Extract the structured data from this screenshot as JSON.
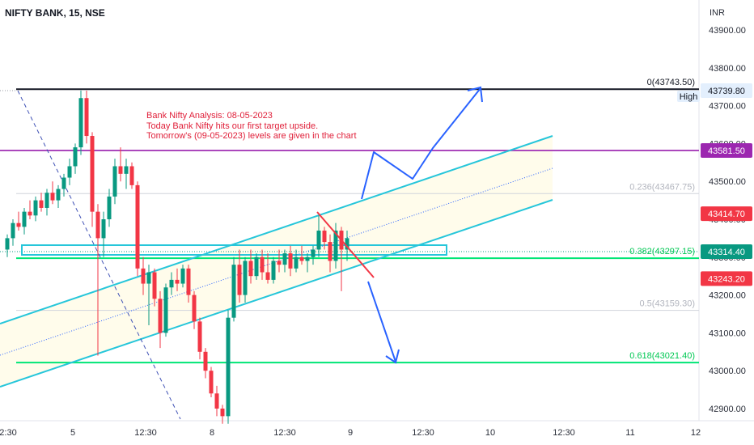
{
  "header": {
    "symbol": "NIFTY BANK, 15, NSE"
  },
  "price_axis": {
    "currency": "INR",
    "ticks": [
      "43900.00",
      "43800.00",
      "43700.00",
      "43600.00",
      "43500.00",
      "43400.00",
      "43300.00",
      "43200.00",
      "43100.00",
      "43000.00",
      "42900.00"
    ]
  },
  "time_axis": {
    "labels": [
      "2:30",
      "5",
      "12:30",
      "8",
      "12:30",
      "9",
      "12:30",
      "10",
      "12:30",
      "11",
      "12"
    ]
  },
  "annotation": {
    "lines": [
      "Bank Nifty Analysis: 08-05-2023",
      "Today Bank Nifty hits our first target upside.",
      "Tomorrow's (09-05-2023) levels are given in the chart"
    ]
  },
  "price_badges": [
    {
      "label": "43739.80",
      "value": 43739.8,
      "style": "light"
    },
    {
      "label": "43581.50",
      "value": 43581.5,
      "color": "#9c27b0"
    },
    {
      "label": "43414.70",
      "value": 43414.7,
      "color": "#f23645"
    },
    {
      "label": "43314.40",
      "value": 43314.4,
      "color": "#089981"
    },
    {
      "label": "43243.20",
      "value": 43243.2,
      "color": "#f23645"
    }
  ],
  "high_tag": "High",
  "colors": {
    "up": "#089981",
    "down": "#f23645",
    "channel": "#26c6da",
    "fib_green": "#00e676",
    "purple": "#ab47bc",
    "arrow": "#2962ff",
    "triangle": "#f23645",
    "annotation": "#e0203a"
  },
  "chart_data": {
    "type": "candlestick",
    "title": "NIFTY BANK, 15, NSE",
    "ylim": [
      42860,
      43960
    ],
    "ylabel": "INR",
    "candles": [
      {
        "o": 43320,
        "h": 43360,
        "l": 43300,
        "c": 43350
      },
      {
        "o": 43350,
        "h": 43400,
        "l": 43330,
        "c": 43390
      },
      {
        "o": 43390,
        "h": 43420,
        "l": 43370,
        "c": 43380
      },
      {
        "o": 43380,
        "h": 43430,
        "l": 43360,
        "c": 43420
      },
      {
        "o": 43420,
        "h": 43450,
        "l": 43400,
        "c": 43410
      },
      {
        "o": 43410,
        "h": 43460,
        "l": 43395,
        "c": 43450
      },
      {
        "o": 43450,
        "h": 43470,
        "l": 43420,
        "c": 43430
      },
      {
        "o": 43430,
        "h": 43480,
        "l": 43410,
        "c": 43470
      },
      {
        "o": 43470,
        "h": 43500,
        "l": 43440,
        "c": 43450
      },
      {
        "o": 43450,
        "h": 43490,
        "l": 43430,
        "c": 43480
      },
      {
        "o": 43480,
        "h": 43520,
        "l": 43460,
        "c": 43510
      },
      {
        "o": 43510,
        "h": 43560,
        "l": 43490,
        "c": 43540
      },
      {
        "o": 43540,
        "h": 43600,
        "l": 43520,
        "c": 43590
      },
      {
        "o": 43590,
        "h": 43740,
        "l": 43570,
        "c": 43720
      },
      {
        "o": 43720,
        "h": 43739.8,
        "l": 43600,
        "c": 43620
      },
      {
        "o": 43620,
        "h": 43630,
        "l": 43380,
        "c": 43420
      },
      {
        "o": 43420,
        "h": 43440,
        "l": 43040,
        "c": 43350
      },
      {
        "o": 43350,
        "h": 43420,
        "l": 43300,
        "c": 43400
      },
      {
        "o": 43400,
        "h": 43480,
        "l": 43380,
        "c": 43460
      },
      {
        "o": 43460,
        "h": 43560,
        "l": 43440,
        "c": 43540
      },
      {
        "o": 43540,
        "h": 43590,
        "l": 43500,
        "c": 43520
      },
      {
        "o": 43520,
        "h": 43560,
        "l": 43480,
        "c": 43540
      },
      {
        "o": 43540,
        "h": 43550,
        "l": 43480,
        "c": 43490
      },
      {
        "o": 43490,
        "h": 43500,
        "l": 43250,
        "c": 43270
      },
      {
        "o": 43270,
        "h": 43300,
        "l": 43200,
        "c": 43230
      },
      {
        "o": 43230,
        "h": 43280,
        "l": 43120,
        "c": 43260
      },
      {
        "o": 43260,
        "h": 43270,
        "l": 43170,
        "c": 43190
      },
      {
        "o": 43190,
        "h": 43210,
        "l": 43060,
        "c": 43100
      },
      {
        "o": 43100,
        "h": 43230,
        "l": 43090,
        "c": 43220
      },
      {
        "o": 43220,
        "h": 43260,
        "l": 43200,
        "c": 43240
      },
      {
        "o": 43240,
        "h": 43270,
        "l": 43210,
        "c": 43230
      },
      {
        "o": 43230,
        "h": 43280,
        "l": 43220,
        "c": 43270
      },
      {
        "o": 43270,
        "h": 43280,
        "l": 43180,
        "c": 43200
      },
      {
        "o": 43200,
        "h": 43210,
        "l": 43110,
        "c": 43130
      },
      {
        "o": 43130,
        "h": 43140,
        "l": 43030,
        "c": 43050
      },
      {
        "o": 43050,
        "h": 43060,
        "l": 42980,
        "c": 43000
      },
      {
        "o": 43000,
        "h": 43010,
        "l": 42930,
        "c": 42940
      },
      {
        "o": 42940,
        "h": 42960,
        "l": 42880,
        "c": 42900
      },
      {
        "o": 42900,
        "h": 42910,
        "l": 42860,
        "c": 42880
      },
      {
        "o": 42880,
        "h": 43160,
        "l": 42860,
        "c": 43140
      },
      {
        "o": 43140,
        "h": 43300,
        "l": 43130,
        "c": 43280
      },
      {
        "o": 43280,
        "h": 43320,
        "l": 43180,
        "c": 43200
      },
      {
        "o": 43200,
        "h": 43300,
        "l": 43180,
        "c": 43290
      },
      {
        "o": 43290,
        "h": 43320,
        "l": 43230,
        "c": 43250
      },
      {
        "o": 43250,
        "h": 43310,
        "l": 43240,
        "c": 43300
      },
      {
        "o": 43300,
        "h": 43320,
        "l": 43240,
        "c": 43260
      },
      {
        "o": 43260,
        "h": 43310,
        "l": 43230,
        "c": 43240
      },
      {
        "o": 43240,
        "h": 43300,
        "l": 43230,
        "c": 43290
      },
      {
        "o": 43290,
        "h": 43320,
        "l": 43260,
        "c": 43280
      },
      {
        "o": 43280,
        "h": 43320,
        "l": 43260,
        "c": 43310
      },
      {
        "o": 43310,
        "h": 43330,
        "l": 43250,
        "c": 43270
      },
      {
        "o": 43270,
        "h": 43320,
        "l": 43260,
        "c": 43300
      },
      {
        "o": 43300,
        "h": 43330,
        "l": 43280,
        "c": 43290
      },
      {
        "o": 43290,
        "h": 43310,
        "l": 43260,
        "c": 43300
      },
      {
        "o": 43300,
        "h": 43330,
        "l": 43280,
        "c": 43320
      },
      {
        "o": 43320,
        "h": 43410,
        "l": 43300,
        "c": 43370
      },
      {
        "o": 43370,
        "h": 43380,
        "l": 43320,
        "c": 43340
      },
      {
        "o": 43340,
        "h": 43360,
        "l": 43260,
        "c": 43290
      },
      {
        "o": 43290,
        "h": 43390,
        "l": 43270,
        "c": 43370
      },
      {
        "o": 43370,
        "h": 43380,
        "l": 43210,
        "c": 43320
      },
      {
        "o": 43320,
        "h": 43370,
        "l": 43290,
        "c": 43350
      }
    ],
    "horizontal_levels": [
      {
        "value": 43743.5,
        "label": "0(43743.50)",
        "color": "#131722"
      },
      {
        "value": 43581.5,
        "color": "#ab47bc"
      },
      {
        "value": 43467.75,
        "label": "0.236(43467.75)",
        "color": "#d1d4dc"
      },
      {
        "value": 43297.15,
        "label": "0.382(43297.15)",
        "color": "#00e676"
      },
      {
        "value": 43159.3,
        "label": "0.5(43159.30)",
        "color": "#d1d4dc"
      },
      {
        "value": 43021.4,
        "label": "0.618(43021.40)",
        "color": "#00e676"
      }
    ]
  }
}
